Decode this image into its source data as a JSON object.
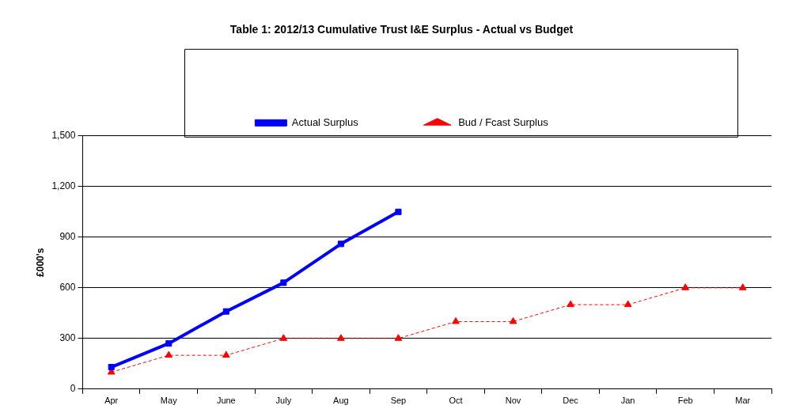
{
  "chart_data": {
    "type": "line",
    "title": "Table 1: 2012/13 Cumulative Trust I&E Surplus - Actual vs Budget",
    "ylabel": "£000's",
    "categories": [
      "Apr",
      "May",
      "June",
      "July",
      "Aug",
      "Sep",
      "Oct",
      "Nov",
      "Dec",
      "Jan",
      "Feb",
      "Mar"
    ],
    "series": [
      {
        "name": "Actual Surplus",
        "color": "#0000ff",
        "marker": "square",
        "line_style": "solid",
        "values": [
          130,
          270,
          460,
          630,
          860,
          1050,
          null,
          null,
          null,
          null,
          null,
          null
        ]
      },
      {
        "name": "Bud / Fcast Surplus",
        "color": "#ff0000",
        "marker": "triangle",
        "line_style": "dashed",
        "values": [
          100,
          200,
          200,
          300,
          300,
          300,
          400,
          400,
          500,
          500,
          600,
          600
        ]
      }
    ],
    "ylim": [
      0,
      1500
    ],
    "yticks": [
      {
        "value": 0,
        "label": "0"
      },
      {
        "value": 300,
        "label": "300"
      },
      {
        "value": 600,
        "label": "600"
      },
      {
        "value": 900,
        "label": "900"
      },
      {
        "value": 1200,
        "label": "1,200"
      },
      {
        "value": 1500,
        "label": "1,500"
      }
    ],
    "grid": "y",
    "legend": "top"
  }
}
